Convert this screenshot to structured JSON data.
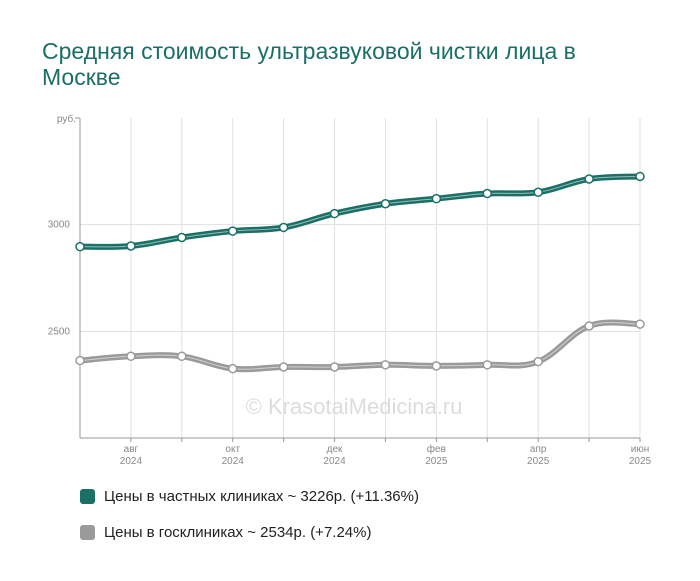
{
  "title": "Средняя стоимость ультразвуковой чистки лица в Москве",
  "watermark": "© KrasotaiMedicina.ru",
  "colors": {
    "private": "#1a6f66",
    "public": "#9a9a9a",
    "grid": "#e0e0e0",
    "axis": "#999999"
  },
  "legend": [
    {
      "label": "Цены в частных клиниках ~ 3226р. (+11.36%)",
      "color": "#1a6f66"
    },
    {
      "label": "Цены в госклиниках ~ 2534р. (+7.24%)",
      "color": "#9a9a9a"
    }
  ],
  "chart_data": {
    "type": "line",
    "title": "Средняя стоимость ультразвуковой чистки лица в Москве",
    "ylabel": "руб.",
    "ylim": [
      2000,
      3500
    ],
    "yticks": [
      2500,
      3000
    ],
    "x": [
      "2024-07",
      "2024-08",
      "2024-09",
      "2024-10",
      "2024-11",
      "2024-12",
      "2025-01",
      "2025-02",
      "2025-03",
      "2025-04",
      "2025-05",
      "2025-06"
    ],
    "xtick_labels": [
      {
        "index": 1,
        "month": "авг",
        "year": "2024"
      },
      {
        "index": 3,
        "month": "окт",
        "year": "2024"
      },
      {
        "index": 5,
        "month": "дек",
        "year": "2024"
      },
      {
        "index": 7,
        "month": "фев",
        "year": "2025"
      },
      {
        "index": 9,
        "month": "апр",
        "year": "2025"
      },
      {
        "index": 11,
        "month": "июн",
        "year": "2025"
      }
    ],
    "series": [
      {
        "name": "Цены в частных клиниках ~ 3226р. (+11.36%)",
        "color": "#1a6f66",
        "values": [
          2897,
          2900,
          2940,
          2970,
          2987,
          3052,
          3098,
          3122,
          3146,
          3152,
          3214,
          3226
        ]
      },
      {
        "name": "Цены в госклиниках ~ 2534р. (+7.24%)",
        "color": "#9a9a9a",
        "values": [
          2363,
          2383,
          2383,
          2325,
          2333,
          2333,
          2343,
          2338,
          2343,
          2358,
          2525,
          2534
        ]
      }
    ],
    "grid": true,
    "legend_position": "bottom"
  }
}
